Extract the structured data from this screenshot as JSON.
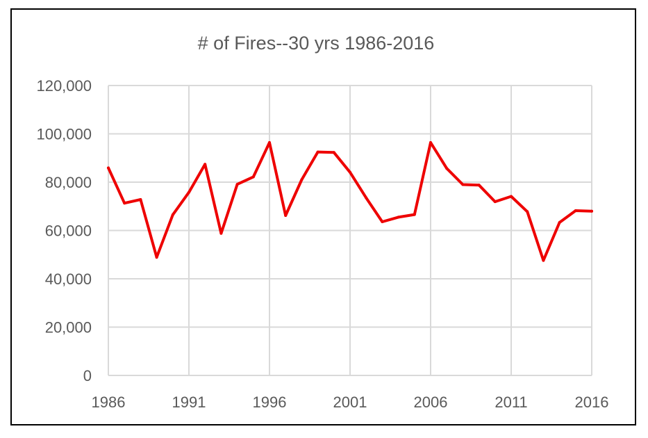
{
  "chart_data": {
    "type": "line",
    "title": "# of Fires--30 yrs 1986-2016",
    "xlabel": "",
    "ylabel": "",
    "xlim": [
      1986,
      2016
    ],
    "ylim": [
      0,
      120000
    ],
    "x_ticks": [
      1986,
      1991,
      1996,
      2001,
      2006,
      2011,
      2016
    ],
    "x_tick_labels": [
      "1986",
      "1991",
      "1996",
      "2001",
      "2006",
      "2011",
      "2016"
    ],
    "y_ticks": [
      0,
      20000,
      40000,
      60000,
      80000,
      100000,
      120000
    ],
    "y_tick_labels": [
      "0",
      "20,000",
      "40,000",
      "60,000",
      "80,000",
      "100,000",
      "120,000"
    ],
    "grid": true,
    "legend": "none",
    "series": [
      {
        "color": "#ee0000",
        "x": [
          1986,
          1987,
          1988,
          1989,
          1990,
          1991,
          1992,
          1993,
          1994,
          1995,
          1996,
          1997,
          1998,
          1999,
          2000,
          2001,
          2002,
          2003,
          2004,
          2005,
          2006,
          2007,
          2008,
          2009,
          2010,
          2011,
          2012,
          2013,
          2014,
          2015,
          2016
        ],
        "values": [
          85900,
          71300,
          72800,
          48900,
          66500,
          75800,
          87400,
          58800,
          79100,
          82200,
          96400,
          66200,
          81000,
          92500,
          92300,
          84100,
          73500,
          63600,
          65500,
          66600,
          96400,
          85700,
          79000,
          78800,
          71900,
          74100,
          67800,
          47600,
          63300,
          68200,
          68000
        ]
      }
    ]
  }
}
